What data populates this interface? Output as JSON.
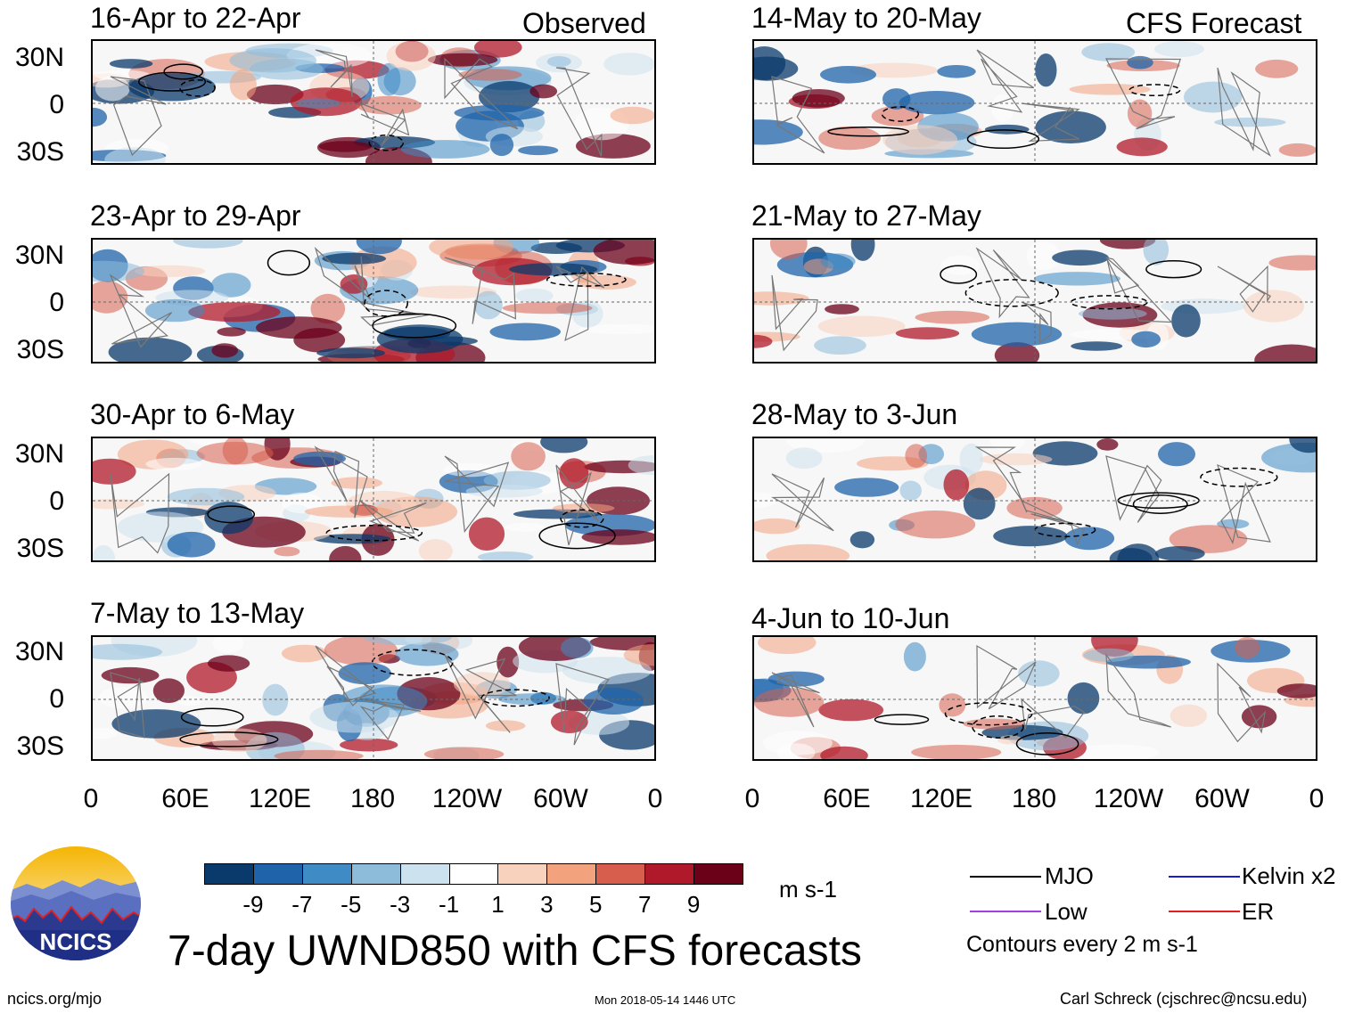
{
  "header": {
    "left_tag": "Observed",
    "right_tag": "CFS Forecast"
  },
  "panels": {
    "left": [
      "16-Apr to 22-Apr",
      "23-Apr to 29-Apr",
      "30-Apr to 6-May",
      "7-May to 13-May"
    ],
    "right": [
      "14-May to 20-May",
      "21-May to 27-May",
      "28-May to 3-Jun",
      "4-Jun to 10-Jun"
    ]
  },
  "y_axis": {
    "labels": [
      "30N",
      "0",
      "30S"
    ]
  },
  "x_axis": {
    "labels": [
      "0",
      "60E",
      "120E",
      "180",
      "120W",
      "60W",
      "0"
    ]
  },
  "colorbar": {
    "colors": [
      "#0a3a6b",
      "#1f64ab",
      "#3e8bc5",
      "#8dbcdb",
      "#cde2ef",
      "#ffffff",
      "#f9d2bd",
      "#f2a27d",
      "#d75e4d",
      "#b0192a",
      "#6b0019"
    ],
    "labels": [
      "-9",
      "-7",
      "-5",
      "-3",
      "-1",
      "1",
      "3",
      "5",
      "7",
      "9"
    ],
    "units": "m s-1"
  },
  "legend": {
    "items": [
      {
        "label": "MJO",
        "color": "#000000"
      },
      {
        "label": "Kelvin x2",
        "color": "#1b1bd6"
      },
      {
        "label": "Low",
        "color": "#a040e0"
      },
      {
        "label": "ER",
        "color": "#e02020"
      }
    ],
    "note": "Contours every 2 m s-1"
  },
  "logo": {
    "text": "NCICS"
  },
  "main_title": "7-day UWND850 with CFS forecasts",
  "footer": {
    "url": "ncics.org/mjo",
    "timestamp": "Mon 2018-05-14 1446 UTC",
    "credit": "Carl Schreck (cjschrec@ncsu.edu)"
  }
}
